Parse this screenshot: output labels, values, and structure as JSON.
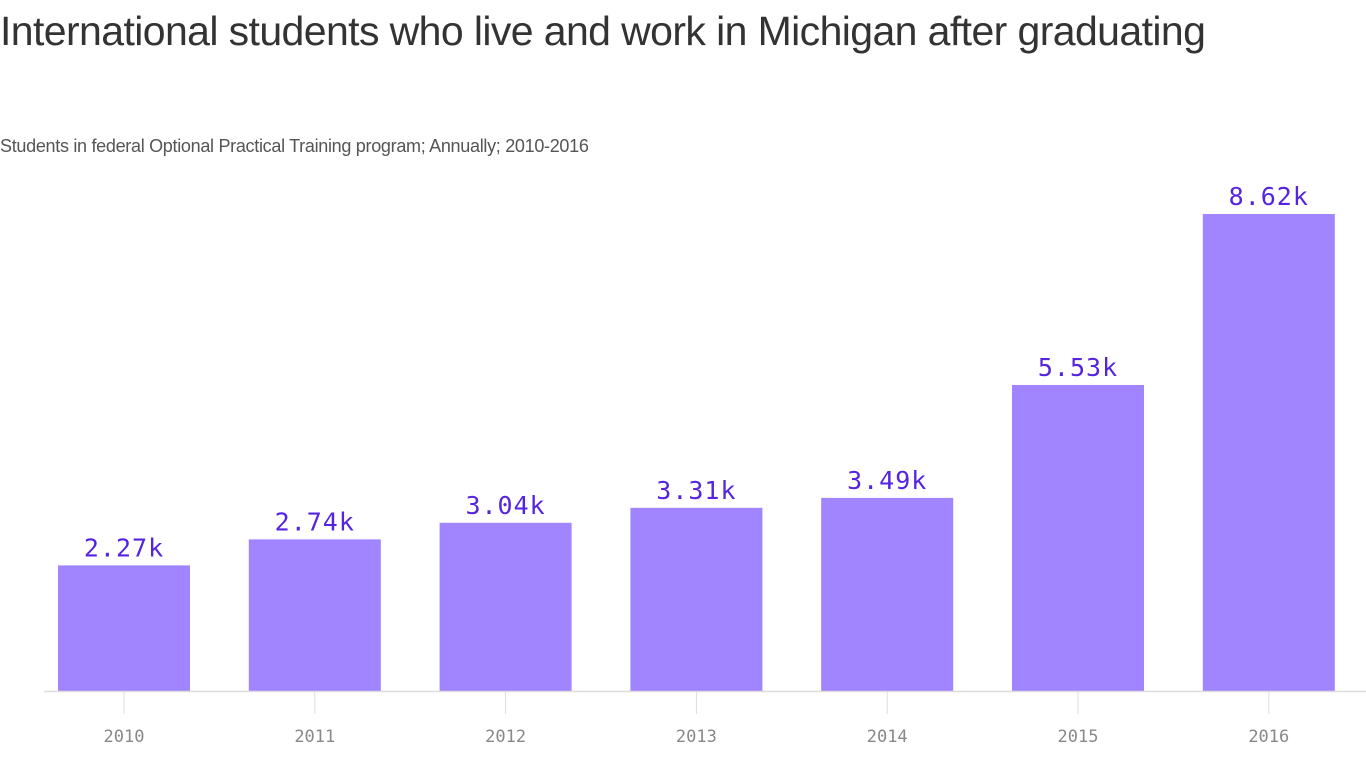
{
  "chart_data": {
    "type": "bar",
    "title": "International students who live and work in Michigan after graduating",
    "subtitle": "Students in federal Optional Practical Training program; Annually; 2010-2016",
    "categories": [
      "2010",
      "2011",
      "2012",
      "2013",
      "2014",
      "2015",
      "2016"
    ],
    "values": [
      2270,
      2740,
      3040,
      3310,
      3490,
      5530,
      8620
    ],
    "data_labels": [
      "2.27k",
      "2.74k",
      "3.04k",
      "3.31k",
      "3.49k",
      "5.53k",
      "8.62k"
    ],
    "xlabel": "",
    "ylabel": "",
    "ylim": [
      0,
      8620
    ],
    "grid": false,
    "colors": {
      "bar": "#a184ff",
      "label": "#5524e0",
      "axis": "#dddddd",
      "tick_label": "#888888"
    }
  }
}
